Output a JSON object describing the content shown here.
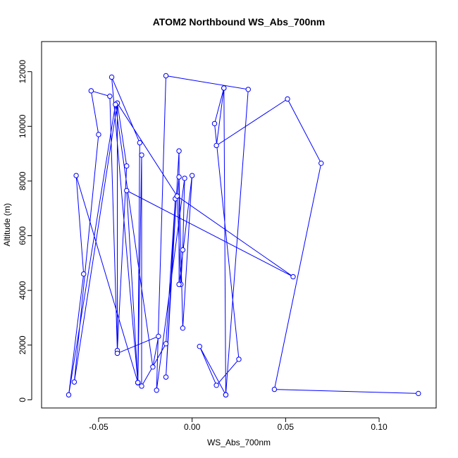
{
  "chart_data": {
    "type": "line",
    "title": "ATOM2 Northbound WS_Abs_700nm",
    "xlabel": "WS_Abs_700nm",
    "ylabel": "Altitude (m)",
    "xlim": [
      -0.0805,
      0.1305
    ],
    "ylim": [
      -300,
      13100
    ],
    "xticks": [
      -0.05,
      0.0,
      0.05,
      0.1
    ],
    "xtick_labels": [
      "-0.05",
      "0.00",
      "0.05",
      "0.10"
    ],
    "yticks": [
      0,
      2000,
      4000,
      6000,
      8000,
      10000,
      12000
    ],
    "ytick_labels": [
      "0",
      "2000",
      "4000",
      "6000",
      "8000",
      "10000",
      "12000"
    ],
    "grid": false,
    "color": "#0000ff",
    "marker": "open-circle",
    "series": [
      {
        "points": [
          [
            0.121,
            230
          ],
          [
            0.044,
            380
          ],
          [
            0.069,
            8650
          ],
          [
            0.051,
            11000
          ],
          [
            0.013,
            9300
          ],
          [
            0.017,
            11400
          ],
          [
            0.018,
            180
          ],
          [
            0.017,
            11400
          ],
          [
            0.012,
            10100
          ],
          [
            0.025,
            1480
          ],
          [
            0.013,
            530
          ],
          [
            0.004,
            1950
          ],
          [
            0.018,
            180
          ],
          [
            0.03,
            11350
          ],
          [
            -0.014,
            11850
          ],
          [
            -0.019,
            350
          ],
          [
            -0.004,
            8100
          ],
          [
            -0.005,
            5480
          ],
          [
            -0.006,
            4220
          ],
          [
            -0.008,
            7450
          ],
          [
            -0.007,
            8150
          ],
          [
            -0.005,
            2620
          ],
          [
            0.0,
            8200
          ],
          [
            -0.007,
            4220
          ],
          [
            -0.007,
            9100
          ],
          [
            -0.014,
            830
          ],
          [
            -0.009,
            7350
          ],
          [
            -0.014,
            2050
          ],
          [
            -0.027,
            500
          ],
          [
            -0.027,
            8950
          ],
          [
            -0.029,
            620
          ],
          [
            -0.043,
            11800
          ],
          [
            -0.028,
            9400
          ],
          [
            -0.029,
            630
          ],
          [
            -0.029,
            630
          ],
          [
            -0.035,
            7650
          ],
          [
            0.054,
            4500
          ],
          [
            -0.008,
            7450
          ],
          [
            -0.04,
            10850
          ],
          [
            -0.035,
            8550
          ],
          [
            -0.04,
            1800
          ],
          [
            -0.044,
            11100
          ],
          [
            -0.054,
            11300
          ],
          [
            -0.05,
            9700
          ],
          [
            -0.063,
            650
          ],
          [
            -0.04,
            10850
          ],
          [
            -0.04,
            1700
          ],
          [
            -0.018,
            2320
          ],
          [
            -0.021,
            1200
          ],
          [
            -0.041,
            10800
          ],
          [
            -0.066,
            180
          ],
          [
            -0.058,
            4600
          ],
          [
            -0.062,
            8200
          ],
          [
            -0.029,
            630
          ]
        ]
      }
    ]
  }
}
